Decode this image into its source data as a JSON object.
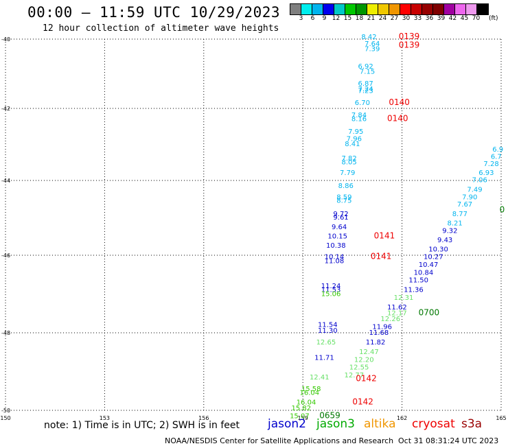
{
  "header": {
    "title": "00:00 – 11:59 UTC 10/29/2023",
    "subtitle": "12 hour collection of altimeter wave heights"
  },
  "legend": {
    "colors": [
      "#7f7f7f",
      "#00eeee",
      "#00b4ee",
      "#0000ee",
      "#00c8c8",
      "#00c800",
      "#009600",
      "#eeee00",
      "#f0c800",
      "#f09600",
      "#ff0000",
      "#c80000",
      "#960000",
      "#7f0000",
      "#a000a0",
      "#ee66ee",
      "#ee99ee",
      "#000000"
    ],
    "ticks": [
      "3",
      "6",
      "9",
      "12",
      "15",
      "18",
      "21",
      "24",
      "27",
      "30",
      "33",
      "36",
      "39",
      "42",
      "45",
      "70"
    ],
    "unit": "(ft)"
  },
  "map": {
    "lon_ticks": [
      "150",
      "153",
      "156",
      "159",
      "162",
      "165"
    ],
    "lat_ticks": [
      "-40",
      "-42",
      "-44",
      "-46",
      "-48",
      "-50"
    ]
  },
  "observations": [
    {
      "id": "obs-1",
      "text": "8.42",
      "lon": 161.0,
      "lat": -40.0,
      "color": "#00b4ee"
    },
    {
      "id": "obs-2",
      "text": "7.64",
      "lon": 161.1,
      "lat": -40.2,
      "color": "#00b4ee"
    },
    {
      "id": "obs-3",
      "text": "7.39",
      "lon": 161.1,
      "lat": -40.35,
      "color": "#00b4ee"
    },
    {
      "id": "obs-4",
      "text": "6.92",
      "lon": 160.9,
      "lat": -40.85,
      "color": "#00b4ee"
    },
    {
      "id": "obs-5",
      "text": "7.15",
      "lon": 160.95,
      "lat": -41.0,
      "color": "#00b4ee"
    },
    {
      "id": "obs-6",
      "text": "6.87",
      "lon": 160.9,
      "lat": -41.35,
      "color": "#00b4ee"
    },
    {
      "id": "obs-7",
      "text": "7.24",
      "lon": 160.9,
      "lat": -41.5,
      "color": "#00b4ee"
    },
    {
      "id": "obs-8",
      "text": "7.23",
      "lon": 160.9,
      "lat": -41.55,
      "color": "#00b4ee"
    },
    {
      "id": "obs-9",
      "text": "6.70",
      "lon": 160.8,
      "lat": -41.9,
      "color": "#00b4ee"
    },
    {
      "id": "obs-10",
      "text": "7.84",
      "lon": 160.7,
      "lat": -42.25,
      "color": "#00b4ee"
    },
    {
      "id": "obs-11",
      "text": "8.16",
      "lon": 160.7,
      "lat": -42.35,
      "color": "#00b4ee"
    },
    {
      "id": "obs-12",
      "text": "7.95",
      "lon": 160.6,
      "lat": -42.7,
      "color": "#00b4ee"
    },
    {
      "id": "obs-13",
      "text": "7.96",
      "lon": 160.55,
      "lat": -42.9,
      "color": "#00b4ee"
    },
    {
      "id": "obs-14",
      "text": "8.41",
      "lon": 160.5,
      "lat": -43.05,
      "color": "#00b4ee"
    },
    {
      "id": "obs-15",
      "text": "7.82",
      "lon": 160.4,
      "lat": -43.45,
      "color": "#00b4ee"
    },
    {
      "id": "obs-16",
      "text": "8.05",
      "lon": 160.4,
      "lat": -43.55,
      "color": "#00b4ee"
    },
    {
      "id": "obs-17",
      "text": "7.79",
      "lon": 160.35,
      "lat": -43.85,
      "color": "#00b4ee"
    },
    {
      "id": "obs-18",
      "text": "8.86",
      "lon": 160.3,
      "lat": -44.2,
      "color": "#00b4ee"
    },
    {
      "id": "obs-19",
      "text": "8.59",
      "lon": 160.25,
      "lat": -44.5,
      "color": "#00b4ee"
    },
    {
      "id": "obs-20",
      "text": "8.75",
      "lon": 160.25,
      "lat": -44.6,
      "color": "#00b4ee"
    },
    {
      "id": "obs-21",
      "text": "9.72",
      "lon": 160.15,
      "lat": -44.95,
      "color": "#0000cc"
    },
    {
      "id": "obs-22",
      "text": "9.61",
      "lon": 160.15,
      "lat": -45.05,
      "color": "#0000cc"
    },
    {
      "id": "obs-23",
      "text": "9.64",
      "lon": 160.1,
      "lat": -45.3,
      "color": "#0000cc"
    },
    {
      "id": "obs-24",
      "text": "10.15",
      "lon": 160.05,
      "lat": -45.55,
      "color": "#0000cc"
    },
    {
      "id": "obs-25",
      "text": "10.38",
      "lon": 160.0,
      "lat": -45.8,
      "color": "#0000cc"
    },
    {
      "id": "obs-26",
      "text": "10.14",
      "lon": 159.95,
      "lat": -46.1,
      "color": "#0000cc"
    },
    {
      "id": "obs-27",
      "text": "11.08",
      "lon": 159.95,
      "lat": -46.2,
      "color": "#0000cc"
    },
    {
      "id": "obs-28",
      "text": "11.24",
      "lon": 159.85,
      "lat": -46.85,
      "color": "#0000cc"
    },
    {
      "id": "obs-29",
      "text": "11.53",
      "lon": 159.85,
      "lat": -46.95,
      "color": "#0000cc"
    },
    {
      "id": "obs-30",
      "text": "15.06",
      "lon": 159.85,
      "lat": -47.05,
      "color": "#33c800"
    },
    {
      "id": "obs-31",
      "text": "11.54",
      "lon": 159.75,
      "lat": -47.85,
      "color": "#0000cc"
    },
    {
      "id": "obs-32",
      "text": "11.30",
      "lon": 159.75,
      "lat": -48.0,
      "color": "#0000cc"
    },
    {
      "id": "obs-33",
      "text": "12.65",
      "lon": 159.7,
      "lat": -48.3,
      "color": "#66e066"
    },
    {
      "id": "obs-34",
      "text": "11.71",
      "lon": 159.65,
      "lat": -48.7,
      "color": "#0000cc"
    },
    {
      "id": "obs-35",
      "text": "12.41",
      "lon": 159.5,
      "lat": -49.2,
      "color": "#66e066"
    },
    {
      "id": "obs-36",
      "text": "15.58",
      "lon": 159.25,
      "lat": -49.5,
      "color": "#33c800"
    },
    {
      "id": "obs-37",
      "text": "16.04",
      "lon": 159.2,
      "lat": -49.6,
      "color": "#33c800"
    },
    {
      "id": "obs-38",
      "text": "16.04",
      "lon": 159.1,
      "lat": -49.85,
      "color": "#33c800"
    },
    {
      "id": "obs-39",
      "text": "15.82",
      "lon": 158.95,
      "lat": -50.0,
      "color": "#33c800"
    },
    {
      "id": "obs-40",
      "text": "15.07",
      "lon": 158.9,
      "lat": -50.2,
      "color": "#33c800"
    },
    {
      "id": "obs-41",
      "text": "11.62",
      "lon": 161.85,
      "lat": -47.4,
      "color": "#0000cc"
    },
    {
      "id": "obs-42",
      "text": "12.31",
      "lon": 162.05,
      "lat": -47.15,
      "color": "#66e066"
    },
    {
      "id": "obs-43",
      "text": "12.17",
      "lon": 161.85,
      "lat": -47.55,
      "color": "#66e066"
    },
    {
      "id": "obs-44",
      "text": "12.26",
      "lon": 161.65,
      "lat": -47.7,
      "color": "#66e066"
    },
    {
      "id": "obs-45",
      "text": "11.36",
      "lon": 162.35,
      "lat": -46.95,
      "color": "#0000cc"
    },
    {
      "id": "obs-46",
      "text": "11.50",
      "lon": 162.5,
      "lat": -46.7,
      "color": "#0000cc"
    },
    {
      "id": "obs-47",
      "text": "10.84",
      "lon": 162.65,
      "lat": -46.5,
      "color": "#0000cc"
    },
    {
      "id": "obs-48",
      "text": "10.47",
      "lon": 162.8,
      "lat": -46.3,
      "color": "#0000cc"
    },
    {
      "id": "obs-49",
      "text": "10.27",
      "lon": 162.95,
      "lat": -46.1,
      "color": "#0000cc"
    },
    {
      "id": "obs-50",
      "text": "10.30",
      "lon": 163.1,
      "lat": -45.9,
      "color": "#0000cc"
    },
    {
      "id": "obs-51",
      "text": "9.43",
      "lon": 163.3,
      "lat": -45.65,
      "color": "#0000cc"
    },
    {
      "id": "obs-52",
      "text": "9.32",
      "lon": 163.45,
      "lat": -45.4,
      "color": "#0000cc"
    },
    {
      "id": "obs-53",
      "text": "8.21",
      "lon": 163.6,
      "lat": -45.2,
      "color": "#00b4ee"
    },
    {
      "id": "obs-54",
      "text": "8.77",
      "lon": 163.75,
      "lat": -44.95,
      "color": "#00b4ee"
    },
    {
      "id": "obs-55",
      "text": "7.67",
      "lon": 163.9,
      "lat": -44.7,
      "color": "#00b4ee"
    },
    {
      "id": "obs-56",
      "text": "7.90",
      "lon": 164.05,
      "lat": -44.5,
      "color": "#00b4ee"
    },
    {
      "id": "obs-57",
      "text": "7.49",
      "lon": 164.2,
      "lat": -44.3,
      "color": "#00b4ee"
    },
    {
      "id": "obs-58",
      "text": "7.06",
      "lon": 164.35,
      "lat": -44.05,
      "color": "#00b4ee"
    },
    {
      "id": "obs-59",
      "text": "6.93",
      "lon": 164.55,
      "lat": -43.85,
      "color": "#00b4ee"
    },
    {
      "id": "obs-60",
      "text": "7.28",
      "lon": 164.7,
      "lat": -43.6,
      "color": "#00b4ee"
    },
    {
      "id": "obs-61",
      "text": "6.7",
      "lon": 164.85,
      "lat": -43.4,
      "color": "#00b4ee"
    },
    {
      "id": "obs-62",
      "text": "6.9",
      "lon": 164.9,
      "lat": -43.2,
      "color": "#00b4ee"
    },
    {
      "id": "obs-63",
      "text": "11.96",
      "lon": 161.4,
      "lat": -47.9,
      "color": "#0000cc"
    },
    {
      "id": "obs-64",
      "text": "11.68",
      "lon": 161.3,
      "lat": -48.05,
      "color": "#0000cc"
    },
    {
      "id": "obs-65",
      "text": "11.82",
      "lon": 161.2,
      "lat": -48.3,
      "color": "#0000cc"
    },
    {
      "id": "obs-66",
      "text": "12.47",
      "lon": 161.0,
      "lat": -48.55,
      "color": "#66e066"
    },
    {
      "id": "obs-67",
      "text": "12.20",
      "lon": 160.85,
      "lat": -48.75,
      "color": "#66e066"
    },
    {
      "id": "obs-68",
      "text": "12.55",
      "lon": 160.7,
      "lat": -48.95,
      "color": "#66e066"
    },
    {
      "id": "obs-69",
      "text": "12.77",
      "lon": 160.55,
      "lat": -49.15,
      "color": "#66e066"
    }
  ],
  "passes": [
    {
      "id": "pass-1",
      "text": "0139",
      "lon": 161.9,
      "lat": -40.0,
      "color": "#ee0000"
    },
    {
      "id": "pass-2",
      "text": "0139",
      "lon": 161.9,
      "lat": -40.25,
      "color": "#ee0000"
    },
    {
      "id": "pass-3",
      "text": "0140",
      "lon": 161.6,
      "lat": -41.9,
      "color": "#ee0000"
    },
    {
      "id": "pass-4",
      "text": "0140",
      "lon": 161.55,
      "lat": -42.35,
      "color": "#ee0000"
    },
    {
      "id": "pass-5",
      "text": "0141",
      "lon": 161.15,
      "lat": -45.55,
      "color": "#ee0000"
    },
    {
      "id": "pass-6",
      "text": "0141",
      "lon": 161.05,
      "lat": -46.1,
      "color": "#ee0000"
    },
    {
      "id": "pass-7",
      "text": "0142",
      "lon": 160.6,
      "lat": -49.25,
      "color": "#ee0000"
    },
    {
      "id": "pass-8",
      "text": "0142",
      "lon": 160.5,
      "lat": -49.85,
      "color": "#ee0000"
    },
    {
      "id": "pass-9",
      "text": "0700",
      "lon": 162.5,
      "lat": -47.55,
      "color": "#007700"
    },
    {
      "id": "pass-10",
      "text": "0659",
      "lon": 159.5,
      "lat": -50.2,
      "color": "#007700"
    },
    {
      "id": "pass-11",
      "text": "0",
      "lon": 164.95,
      "lat": -44.85,
      "color": "#007700"
    }
  ],
  "footer": {
    "note": "note: 1) Time is in UTC; 2) SWH is in feet",
    "missions": [
      {
        "label": "jason2",
        "color": "#0000cc"
      },
      {
        "label": "jason3",
        "color": "#00aa00"
      },
      {
        "label": "altika",
        "color": "#f09600"
      },
      {
        "label": "cryosat",
        "color": "#ee0000"
      },
      {
        "label": "s3a",
        "color": "#990000"
      }
    ],
    "credit": "NOAA/NESDIS Center for Satellite Applications and Research",
    "generated": "Oct 31 08:31:24 UTC 2023"
  }
}
